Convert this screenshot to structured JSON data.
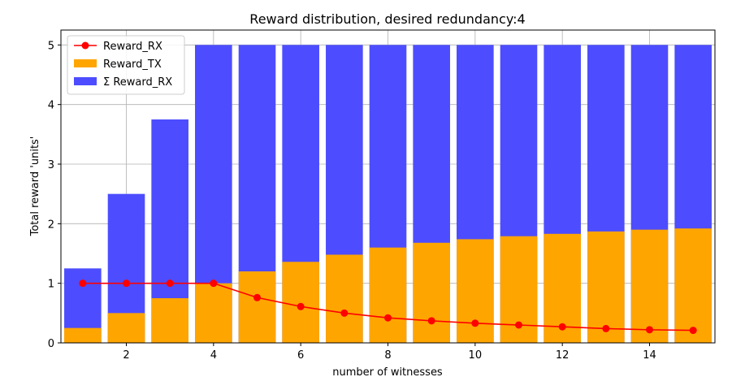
{
  "chart_data": {
    "type": "bar",
    "title": "Reward distribution, desired redundancy:4",
    "xlabel": "number of witnesses",
    "ylabel": "Total reward 'units'",
    "xlim": [
      0.5,
      15.5
    ],
    "ylim": [
      0,
      5.25
    ],
    "xticks": [
      2,
      4,
      6,
      8,
      10,
      12,
      14
    ],
    "yticks": [
      0,
      1,
      2,
      3,
      4,
      5
    ],
    "grid": true,
    "legend_position": "top-left",
    "x": [
      1,
      2,
      3,
      4,
      5,
      6,
      7,
      8,
      9,
      10,
      11,
      12,
      13,
      14,
      15
    ],
    "series": [
      {
        "name": "Reward_RX",
        "kind": "line",
        "color": "#ff0000",
        "values": [
          1.0,
          1.0,
          1.0,
          1.0,
          0.76,
          0.61,
          0.5,
          0.42,
          0.37,
          0.33,
          0.3,
          0.27,
          0.24,
          0.22,
          0.21
        ]
      },
      {
        "name": "Reward_TX",
        "kind": "bar",
        "color": "#ffa500",
        "values": [
          0.25,
          0.5,
          0.75,
          1.0,
          1.2,
          1.36,
          1.48,
          1.6,
          1.68,
          1.74,
          1.79,
          1.83,
          1.87,
          1.9,
          1.92
        ]
      },
      {
        "name": "Σ Reward_RX",
        "kind": "bar",
        "color": "#4d4dff",
        "values": [
          1.25,
          2.5,
          3.75,
          5.0,
          5.0,
          5.0,
          5.0,
          5.0,
          5.0,
          5.0,
          5.0,
          5.0,
          5.0,
          5.0,
          5.0
        ]
      }
    ]
  }
}
